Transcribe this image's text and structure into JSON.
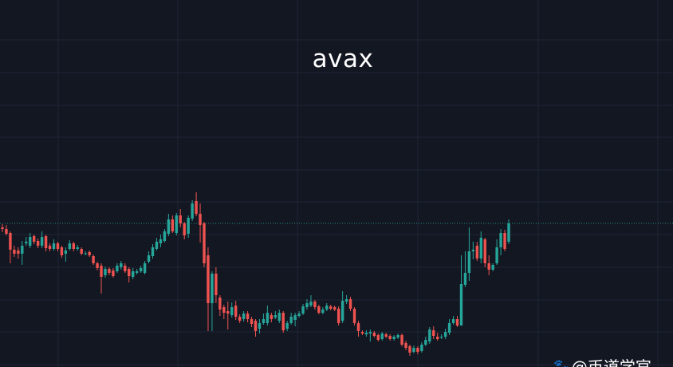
{
  "chart_data": {
    "type": "candlestick",
    "title": "avax",
    "xlabel": "",
    "ylabel": "",
    "ylim": [
      4,
      50
    ],
    "grid": true,
    "last_price": 22.0,
    "colors": {
      "up": "#26a69a",
      "down": "#ef5350",
      "background": "#131722",
      "grid": "#1f2535",
      "last_price_line": "#26a69a"
    },
    "ohlc_fields": [
      "open",
      "high",
      "low",
      "close"
    ],
    "candles": [
      [
        21.5,
        21.9,
        20.9,
        21.3
      ],
      [
        21.3,
        21.8,
        20.5,
        20.7
      ],
      [
        20.8,
        21.0,
        17.0,
        18.7
      ],
      [
        18.7,
        19.2,
        17.8,
        18.2
      ],
      [
        18.6,
        19.0,
        17.6,
        18.2
      ],
      [
        18.2,
        19.8,
        16.8,
        19.2
      ],
      [
        19.5,
        20.3,
        19.2,
        19.7
      ],
      [
        19.2,
        20.8,
        18.9,
        20.3
      ],
      [
        20.4,
        20.6,
        19.4,
        19.7
      ],
      [
        19.8,
        20.1,
        18.9,
        19.2
      ],
      [
        19.2,
        21.0,
        18.9,
        20.3
      ],
      [
        20.4,
        20.6,
        18.5,
        18.9
      ],
      [
        19.2,
        19.5,
        18.5,
        18.8
      ],
      [
        18.8,
        20.0,
        18.6,
        19.5
      ],
      [
        19.5,
        19.7,
        18.5,
        18.8
      ],
      [
        19.0,
        19.2,
        17.7,
        18.0
      ],
      [
        18.2,
        19.0,
        17.2,
        18.6
      ],
      [
        18.8,
        19.9,
        18.6,
        19.5
      ],
      [
        19.5,
        19.7,
        18.5,
        18.8
      ],
      [
        18.8,
        19.3,
        18.6,
        19.0
      ],
      [
        18.8,
        19.0,
        18.0,
        18.2
      ],
      [
        18.2,
        18.5,
        18.0,
        18.25
      ],
      [
        18.4,
        18.6,
        17.8,
        18.0
      ],
      [
        17.9,
        18.1,
        16.8,
        17.0
      ],
      [
        17.0,
        17.2,
        16.1,
        16.4
      ],
      [
        16.7,
        17.0,
        13.2,
        15.3
      ],
      [
        15.5,
        16.6,
        15.2,
        16.3
      ],
      [
        16.3,
        16.5,
        15.5,
        15.8
      ],
      [
        16.1,
        16.4,
        15.2,
        15.4
      ],
      [
        16.0,
        17.0,
        15.8,
        16.7
      ],
      [
        16.5,
        17.3,
        16.2,
        17.0
      ],
      [
        16.7,
        17.0,
        15.8,
        16.0
      ],
      [
        16.3,
        16.5,
        14.6,
        15.4
      ],
      [
        15.3,
        16.4,
        15.0,
        16.0
      ],
      [
        15.8,
        16.3,
        15.6,
        16.0
      ],
      [
        16.0,
        16.7,
        15.8,
        16.4
      ],
      [
        15.8,
        17.3,
        15.6,
        17.0
      ],
      [
        17.2,
        18.5,
        17.0,
        18.0
      ],
      [
        17.9,
        19.4,
        17.6,
        19.0
      ],
      [
        18.8,
        20.2,
        18.6,
        19.7
      ],
      [
        19.5,
        20.6,
        19.0,
        20.0
      ],
      [
        19.8,
        21.3,
        19.6,
        21.0
      ],
      [
        20.7,
        23.2,
        20.4,
        22.5
      ],
      [
        22.5,
        23.0,
        20.8,
        21.0
      ],
      [
        20.8,
        23.3,
        20.5,
        23.0
      ],
      [
        23.0,
        23.8,
        21.5,
        22.0
      ],
      [
        22.0,
        22.2,
        20.0,
        20.5
      ],
      [
        20.7,
        23.0,
        20.2,
        22.7
      ],
      [
        22.6,
        24.9,
        22.3,
        24.5
      ],
      [
        24.8,
        25.9,
        22.9,
        23.2
      ],
      [
        23.2,
        24.5,
        19.6,
        21.8
      ],
      [
        22.0,
        22.2,
        16.5,
        17.0
      ],
      [
        18.0,
        19.0,
        8.5,
        12.0
      ],
      [
        12.0,
        16.0,
        8.5,
        15.7
      ],
      [
        15.7,
        16.5,
        12.0,
        13.0
      ],
      [
        12.7,
        13.0,
        10.4,
        11.2
      ],
      [
        11.5,
        11.8,
        10.0,
        10.8
      ],
      [
        11.0,
        12.2,
        8.7,
        10.7
      ],
      [
        10.5,
        12.1,
        10.2,
        11.5
      ],
      [
        11.7,
        12.3,
        9.9,
        10.3
      ],
      [
        10.3,
        10.6,
        9.5,
        9.8
      ],
      [
        10.0,
        11.0,
        9.7,
        10.7
      ],
      [
        10.7,
        11.0,
        9.6,
        10.0
      ],
      [
        10.0,
        10.3,
        9.0,
        9.4
      ],
      [
        9.8,
        10.0,
        7.8,
        8.5
      ],
      [
        8.8,
        10.0,
        8.2,
        9.5
      ],
      [
        9.5,
        10.7,
        9.3,
        10.0
      ],
      [
        9.5,
        11.7,
        9.2,
        10.8
      ],
      [
        10.5,
        10.8,
        9.6,
        10.0
      ],
      [
        10.2,
        11.0,
        10.0,
        10.5
      ],
      [
        9.8,
        11.2,
        9.5,
        10.8
      ],
      [
        10.8,
        11.0,
        8.3,
        8.6
      ],
      [
        8.8,
        9.8,
        8.5,
        9.5
      ],
      [
        9.5,
        10.8,
        9.3,
        10.3
      ],
      [
        9.9,
        10.8,
        9.1,
        10.5
      ],
      [
        10.4,
        11.0,
        10.2,
        10.7
      ],
      [
        10.7,
        11.9,
        10.5,
        11.6
      ],
      [
        11.5,
        12.5,
        11.2,
        12.0
      ],
      [
        11.7,
        13.0,
        11.5,
        12.2
      ],
      [
        12.2,
        12.4,
        11.2,
        11.5
      ],
      [
        11.6,
        11.8,
        10.6,
        10.8
      ],
      [
        10.8,
        11.5,
        10.6,
        11.2
      ],
      [
        11.2,
        12.0,
        11.0,
        11.7
      ],
      [
        11.6,
        11.8,
        11.1,
        11.3
      ],
      [
        11.5,
        11.7,
        11.0,
        11.2
      ],
      [
        11.3,
        11.6,
        9.2,
        9.5
      ],
      [
        9.8,
        13.5,
        9.5,
        12.3
      ],
      [
        12.2,
        13.0,
        11.9,
        12.5
      ],
      [
        12.5,
        12.8,
        11.0,
        11.3
      ],
      [
        11.3,
        11.5,
        9.2,
        9.5
      ],
      [
        9.5,
        9.8,
        7.8,
        8.5
      ],
      [
        8.4,
        8.6,
        8.0,
        8.2
      ],
      [
        8.1,
        8.6,
        7.8,
        8.3
      ],
      [
        8.2,
        8.7,
        7.2,
        8.4
      ],
      [
        8.3,
        8.5,
        7.7,
        7.9
      ],
      [
        8.0,
        8.2,
        7.2,
        7.4
      ],
      [
        7.5,
        8.4,
        7.3,
        8.2
      ],
      [
        8.1,
        8.3,
        7.6,
        7.8
      ],
      [
        7.9,
        8.1,
        7.3,
        7.5
      ],
      [
        7.5,
        8.0,
        7.3,
        7.8
      ],
      [
        7.7,
        8.2,
        7.5,
        8.0
      ],
      [
        8.0,
        8.2,
        6.6,
        6.8
      ],
      [
        7.0,
        7.3,
        6.1,
        6.4
      ],
      [
        6.6,
        6.8,
        5.4,
        5.8
      ],
      [
        5.9,
        6.7,
        5.7,
        6.4
      ],
      [
        6.4,
        6.6,
        5.6,
        5.9
      ],
      [
        6.0,
        7.1,
        5.8,
        6.8
      ],
      [
        6.8,
        7.8,
        6.6,
        7.4
      ],
      [
        7.2,
        9.0,
        6.9,
        8.7
      ],
      [
        8.6,
        9.1,
        7.5,
        7.9
      ],
      [
        7.8,
        8.3,
        7.3,
        7.5
      ],
      [
        7.7,
        8.1,
        7.5,
        7.8
      ],
      [
        7.8,
        8.8,
        7.5,
        8.4
      ],
      [
        8.3,
        10.0,
        8.0,
        9.5
      ],
      [
        9.5,
        10.4,
        9.3,
        10.0
      ],
      [
        10.0,
        10.4,
        9.0,
        9.2
      ],
      [
        9.2,
        18.0,
        9.2,
        14.4
      ],
      [
        14.3,
        18.5,
        14.0,
        15.8
      ],
      [
        15.8,
        21.5,
        14.8,
        18.5
      ],
      [
        18.5,
        19.7,
        17.5,
        18.7
      ],
      [
        19.2,
        19.7,
        17.3,
        17.6
      ],
      [
        17.6,
        21.0,
        17.0,
        20.2
      ],
      [
        20.0,
        20.2,
        16.5,
        17.0
      ],
      [
        17.0,
        18.0,
        15.5,
        16.2
      ],
      [
        16.2,
        17.0,
        16.0,
        16.8
      ],
      [
        17.0,
        20.0,
        16.8,
        19.0
      ],
      [
        19.0,
        21.3,
        18.0,
        20.8
      ],
      [
        20.8,
        21.2,
        18.5,
        18.8
      ],
      [
        19.7,
        22.5,
        19.4,
        22.0
      ]
    ]
  },
  "watermark": {
    "icon": "paw-icon",
    "text": "@币道学官"
  }
}
